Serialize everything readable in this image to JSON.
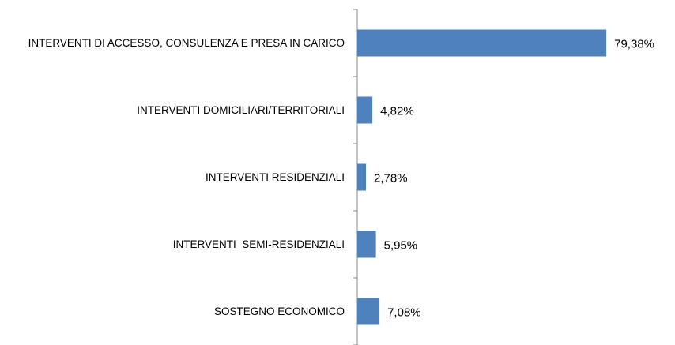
{
  "chart_data": {
    "type": "bar",
    "orientation": "horizontal",
    "categories": [
      "INTERVENTI DI ACCESSO, CONSULENZA E PRESA IN CARICO",
      "INTERVENTI DOMICILIARI/TERRITORIALI",
      "INTERVENTI RESIDENZIALI",
      "INTERVENTI  SEMI-RESIDENZIALI",
      "SOSTEGNO ECONOMICO"
    ],
    "values": [
      79.38,
      4.82,
      2.78,
      5.95,
      7.08
    ],
    "value_labels": [
      "79,38%",
      "4,82%",
      "2,78%",
      "5,95%",
      "7,08%"
    ],
    "color": "#4f81bd",
    "xlim": [
      0,
      100
    ]
  }
}
